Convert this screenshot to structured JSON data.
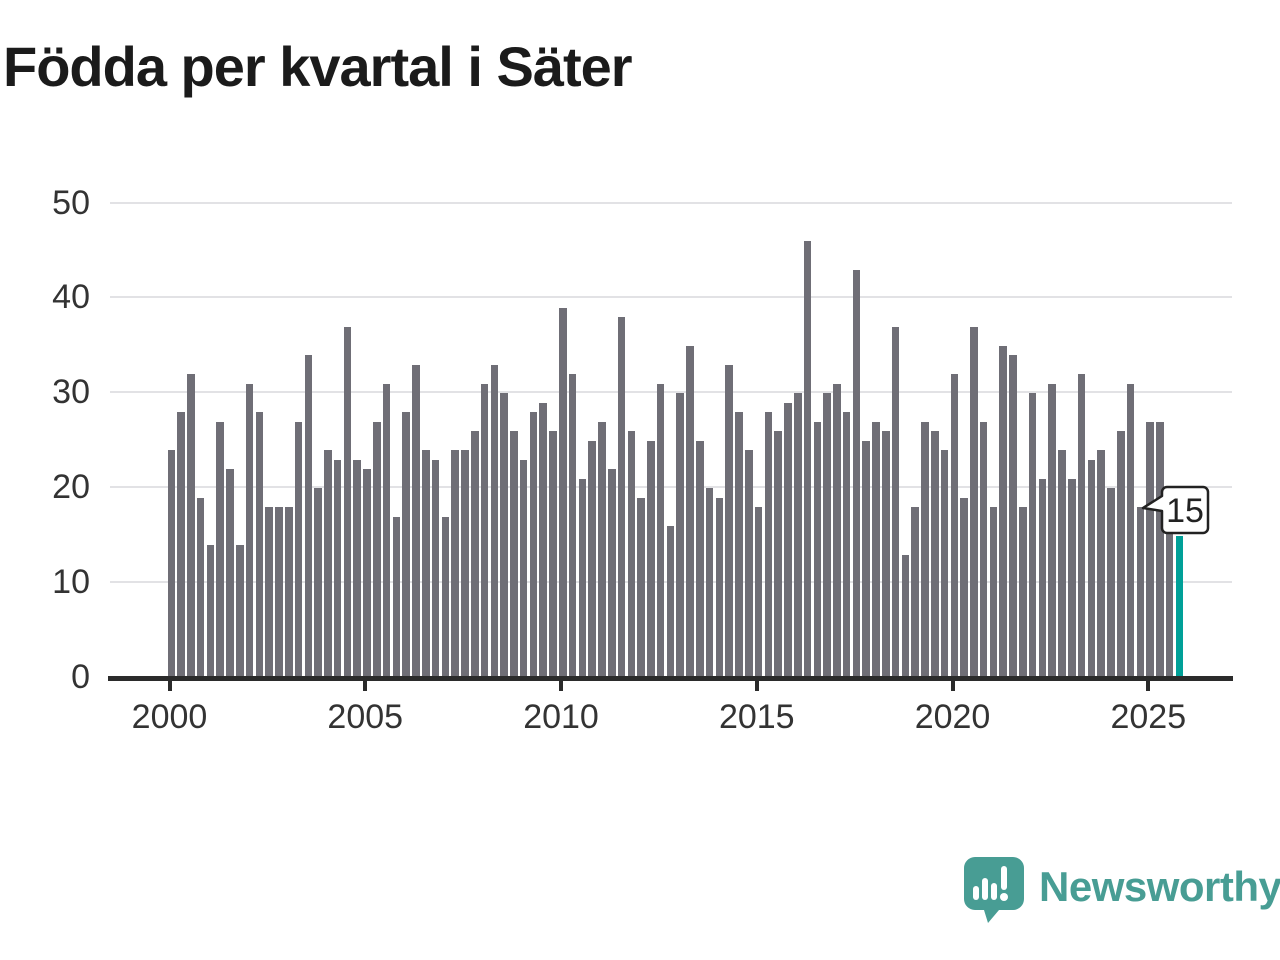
{
  "title": "Födda per kvartal i Säter",
  "logo": {
    "text": "Newsworthy",
    "color": "#489d94"
  },
  "colors": {
    "bar": "#6f6e76",
    "highlight": "#00a098",
    "gridline": "#e2e2e5",
    "axis": "#2b2b2b",
    "label_text": "#333333",
    "title_text": "#1b1b1b"
  },
  "axes": {
    "y_ticks": [
      0,
      10,
      20,
      30,
      40,
      50
    ],
    "x_ticks": [
      2000,
      2005,
      2010,
      2015,
      2020,
      2025
    ]
  },
  "annotation": {
    "label": "15"
  },
  "chart_data": {
    "type": "bar",
    "title": "Födda per kvartal i Säter",
    "frequency": "quarterly",
    "x_start": "2000 Q1",
    "x_end": "2025 Q4",
    "x_tick_labels": [
      "2000",
      "2005",
      "2010",
      "2015",
      "2020",
      "2025"
    ],
    "ylabel": "",
    "xlabel": "",
    "ylim": [
      0,
      52
    ],
    "grid": "horizontal",
    "legend_position": "none",
    "y_gridlines": [
      10,
      20,
      30,
      40,
      50
    ],
    "values": [
      24,
      28,
      32,
      19,
      14,
      27,
      22,
      14,
      31,
      28,
      18,
      18,
      18,
      27,
      34,
      20,
      24,
      23,
      37,
      23,
      22,
      27,
      31,
      17,
      28,
      33,
      24,
      23,
      17,
      24,
      24,
      26,
      31,
      33,
      30,
      26,
      23,
      28,
      29,
      26,
      39,
      32,
      21,
      25,
      27,
      22,
      38,
      26,
      19,
      25,
      31,
      16,
      30,
      35,
      25,
      20,
      19,
      33,
      28,
      24,
      18,
      28,
      26,
      29,
      30,
      46,
      27,
      30,
      31,
      28,
      43,
      25,
      27,
      26,
      37,
      13,
      18,
      27,
      26,
      24,
      32,
      19,
      37,
      27,
      18,
      35,
      34,
      18,
      30,
      21,
      31,
      24,
      21,
      32,
      23,
      24,
      20,
      26,
      31,
      18,
      27,
      27,
      17,
      15
    ],
    "highlight": {
      "index": 103,
      "quarter": "2025 Q4",
      "value": 15,
      "label": "15",
      "color": "#00a098"
    }
  }
}
